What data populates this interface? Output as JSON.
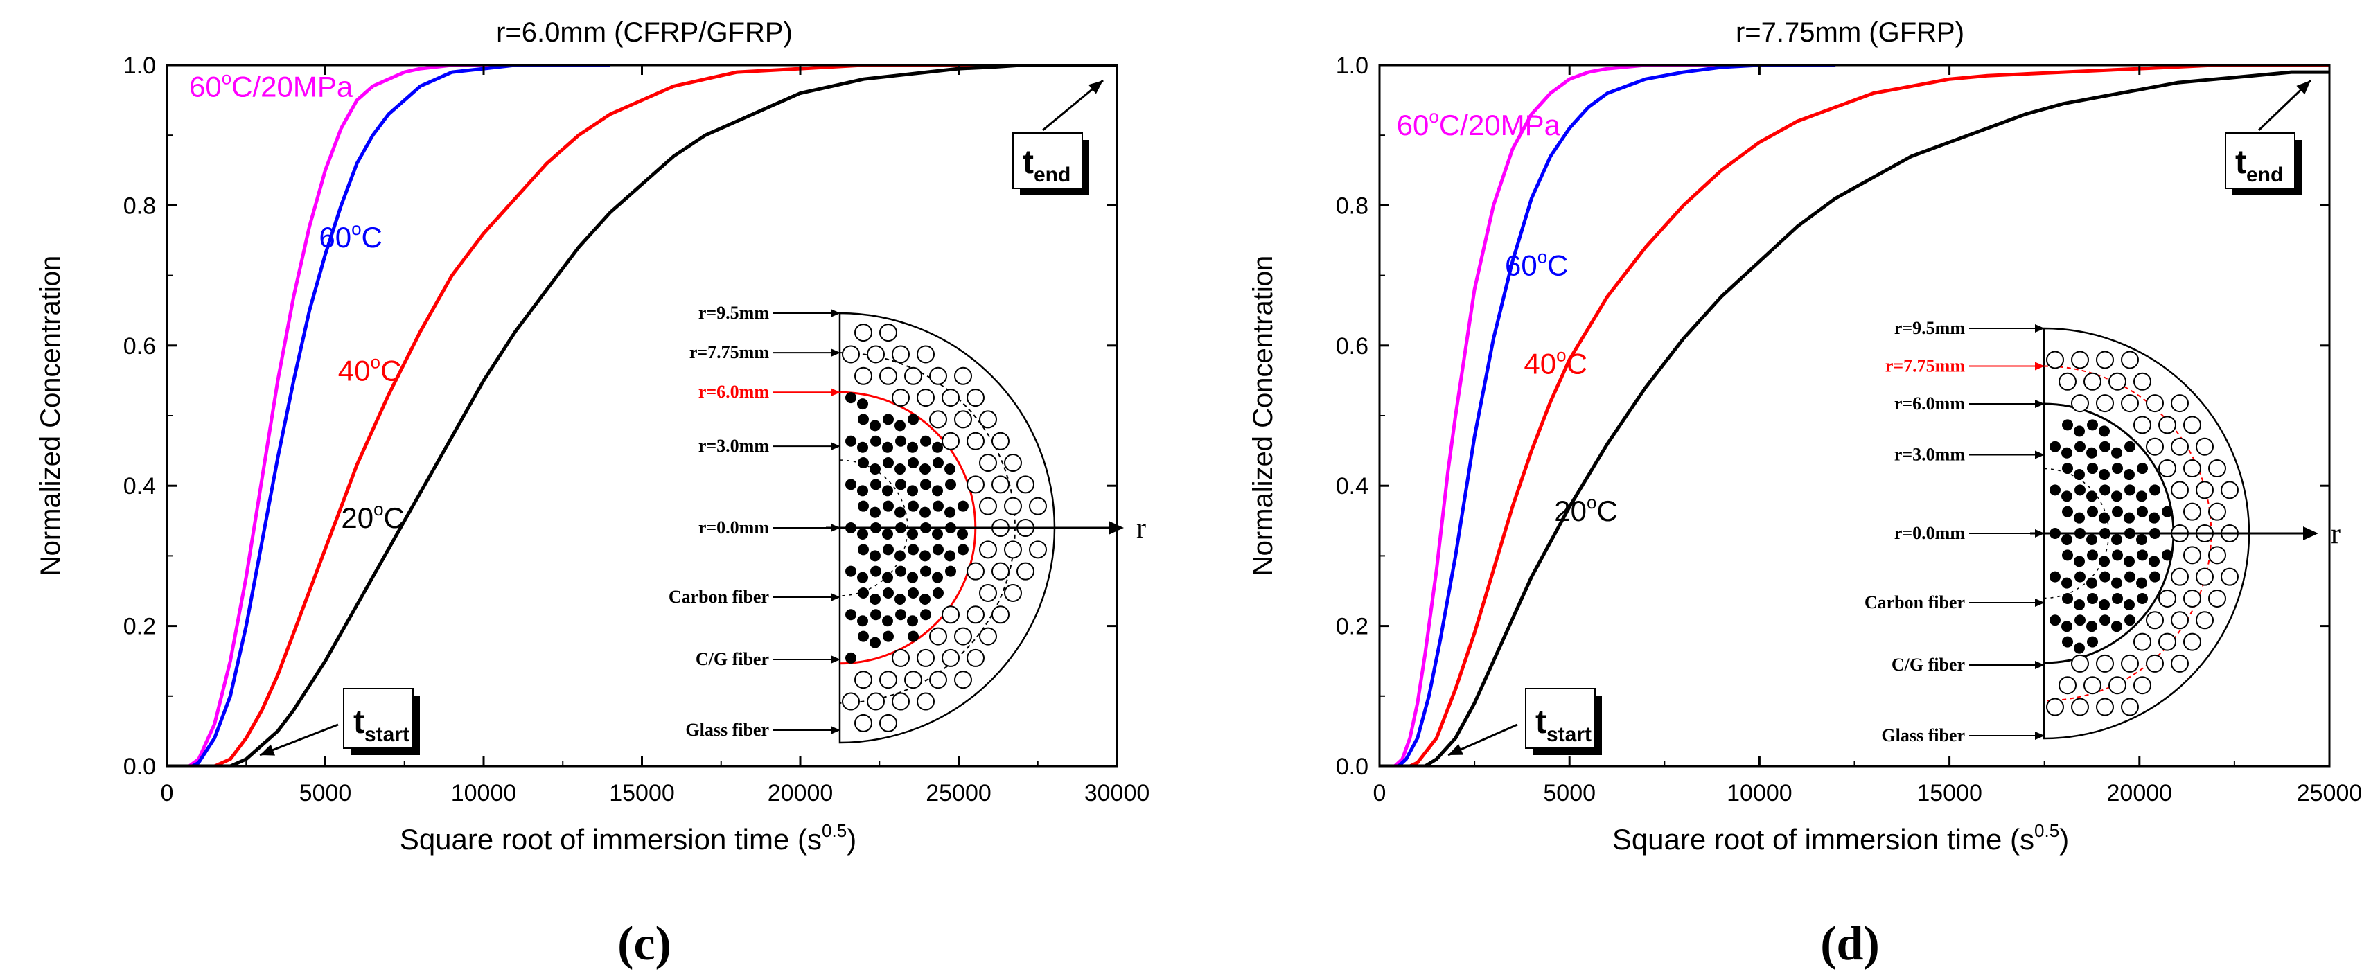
{
  "chart_data": [
    {
      "panel_label": "(c)",
      "type": "line",
      "title": "r=6.0mm (CFRP/GFRP)",
      "xlabel": "Square root of immersion time (s",
      "xlabel_exp": "0.5",
      "xlabel_end": ")",
      "ylabel": "Normalized Concentration",
      "xlim": [
        0,
        30000
      ],
      "ylim": [
        0,
        1.0
      ],
      "xticks": [
        0,
        5000,
        10000,
        15000,
        20000,
        25000,
        30000
      ],
      "yticks": [
        0.0,
        0.2,
        0.4,
        0.6,
        0.8,
        1.0
      ],
      "series": [
        {
          "name": "60°C/20MPa",
          "color": "#ff00ff",
          "x": [
            0,
            700,
            1000,
            1500,
            2000,
            2500,
            3000,
            3500,
            4000,
            4500,
            5000,
            5500,
            6000,
            6500,
            7000,
            7500,
            8000,
            9000,
            10000,
            11000,
            12000,
            14000
          ],
          "y": [
            0,
            0,
            0.01,
            0.06,
            0.15,
            0.27,
            0.41,
            0.55,
            0.67,
            0.77,
            0.85,
            0.91,
            0.95,
            0.97,
            0.98,
            0.99,
            0.995,
            1.0,
            1.0,
            1.0,
            1.0,
            1.0
          ]
        },
        {
          "name": "60°C",
          "color": "#0000ff",
          "x": [
            0,
            800,
            1000,
            1500,
            2000,
            2500,
            3000,
            3500,
            4000,
            4500,
            5000,
            5500,
            6000,
            6500,
            7000,
            7500,
            8000,
            9000,
            10000,
            11000,
            12000,
            13000,
            14000
          ],
          "y": [
            0,
            0,
            0.005,
            0.04,
            0.1,
            0.2,
            0.32,
            0.44,
            0.55,
            0.65,
            0.73,
            0.8,
            0.86,
            0.9,
            0.93,
            0.95,
            0.97,
            0.99,
            0.995,
            1.0,
            1.0,
            1.0,
            1.0
          ]
        },
        {
          "name": "40°C",
          "color": "#ff0000",
          "x": [
            0,
            1500,
            2000,
            2500,
            3000,
            3500,
            4000,
            4500,
            5000,
            5500,
            6000,
            7000,
            8000,
            9000,
            10000,
            11000,
            12000,
            13000,
            14000,
            15000,
            16000,
            17000,
            18000,
            20000,
            22000,
            24000,
            26000,
            28000,
            30000
          ],
          "y": [
            0,
            0,
            0.01,
            0.04,
            0.08,
            0.13,
            0.19,
            0.25,
            0.31,
            0.37,
            0.43,
            0.53,
            0.62,
            0.7,
            0.76,
            0.81,
            0.86,
            0.9,
            0.93,
            0.95,
            0.97,
            0.98,
            0.99,
            0.995,
            1.0,
            1.0,
            1.0,
            1.0,
            1.0
          ]
        },
        {
          "name": "20°C",
          "color": "#000000",
          "x": [
            0,
            2000,
            2500,
            3000,
            3500,
            4000,
            5000,
            6000,
            7000,
            8000,
            9000,
            10000,
            11000,
            12000,
            13000,
            14000,
            15000,
            16000,
            17000,
            18000,
            19000,
            20000,
            21000,
            22000,
            23000,
            24000,
            25000,
            26000,
            27000,
            28000,
            30000
          ],
          "y": [
            0,
            0,
            0.01,
            0.03,
            0.05,
            0.08,
            0.15,
            0.23,
            0.31,
            0.39,
            0.47,
            0.55,
            0.62,
            0.68,
            0.74,
            0.79,
            0.83,
            0.87,
            0.9,
            0.92,
            0.94,
            0.96,
            0.97,
            0.98,
            0.985,
            0.99,
            0.995,
            0.997,
            1.0,
            1.0,
            1.0
          ]
        }
      ],
      "curve_labels": [
        {
          "text": "60",
          "sup": "o",
          "tail": "C/20MPa",
          "color": "#ff00ff",
          "x": 700,
          "y": 0.955
        },
        {
          "text": "60",
          "sup": "o",
          "tail": "C",
          "color": "#0000ff",
          "x": 4800,
          "y": 0.74
        },
        {
          "text": "40",
          "sup": "o",
          "tail": "C",
          "color": "#ff0000",
          "x": 5400,
          "y": 0.55
        },
        {
          "text": "20",
          "sup": "o",
          "tail": "C",
          "color": "#000000",
          "x": 5500,
          "y": 0.34
        }
      ],
      "t_end_label": {
        "t": "t",
        "sub": "end"
      },
      "t_start_label": {
        "t": "t",
        "sub": "start"
      },
      "inset": {
        "labels": [
          "r=9.5mm",
          "r=7.75mm",
          "r=6.0mm",
          "r=3.0mm",
          "r=0.0mm",
          "Carbon fiber",
          "C/G fiber",
          "Glass fiber"
        ],
        "highlight": "r=6.0mm",
        "highlight_color": "#ff0000",
        "axis_label": "r"
      }
    },
    {
      "panel_label": "(d)",
      "type": "line",
      "title": "r=7.75mm (GFRP)",
      "xlabel": "Square root of immersion time (s",
      "xlabel_exp": "0.5",
      "xlabel_end": ")",
      "ylabel": "Normalized Concentration",
      "xlim": [
        0,
        25000
      ],
      "ylim": [
        0,
        1.0
      ],
      "xticks": [
        0,
        5000,
        10000,
        15000,
        20000,
        25000
      ],
      "yticks": [
        0.0,
        0.2,
        0.4,
        0.6,
        0.8,
        1.0
      ],
      "series": [
        {
          "name": "60°C/20MPa",
          "color": "#ff00ff",
          "x": [
            0,
            400,
            600,
            800,
            1000,
            1200,
            1500,
            1800,
            2000,
            2500,
            3000,
            3500,
            4000,
            4500,
            5000,
            5500,
            6000,
            7000,
            8000,
            9000,
            10000,
            11000,
            12000
          ],
          "y": [
            0,
            0,
            0.01,
            0.04,
            0.09,
            0.16,
            0.28,
            0.42,
            0.5,
            0.68,
            0.8,
            0.88,
            0.93,
            0.96,
            0.98,
            0.99,
            0.995,
            1.0,
            1.0,
            1.0,
            1.0,
            1.0,
            1.0
          ]
        },
        {
          "name": "60°C",
          "color": "#0000ff",
          "x": [
            0,
            500,
            700,
            1000,
            1300,
            1600,
            2000,
            2500,
            3000,
            3500,
            4000,
            4500,
            5000,
            5500,
            6000,
            7000,
            8000,
            9000,
            10000,
            11000,
            12000
          ],
          "y": [
            0,
            0,
            0.01,
            0.04,
            0.1,
            0.18,
            0.3,
            0.47,
            0.61,
            0.72,
            0.81,
            0.87,
            0.91,
            0.94,
            0.96,
            0.98,
            0.99,
            0.997,
            1.0,
            1.0,
            1.0
          ]
        },
        {
          "name": "40°C",
          "color": "#ff0000",
          "x": [
            0,
            800,
            1000,
            1500,
            2000,
            2500,
            3000,
            3500,
            4000,
            4500,
            5000,
            6000,
            7000,
            8000,
            9000,
            10000,
            11000,
            12000,
            13000,
            14000,
            15000,
            16000,
            18000,
            20000,
            22000,
            25000
          ],
          "y": [
            0,
            0,
            0.005,
            0.04,
            0.11,
            0.19,
            0.28,
            0.37,
            0.45,
            0.52,
            0.58,
            0.67,
            0.74,
            0.8,
            0.85,
            0.89,
            0.92,
            0.94,
            0.96,
            0.97,
            0.98,
            0.985,
            0.99,
            0.995,
            1.0,
            1.0
          ]
        },
        {
          "name": "20°C",
          "color": "#000000",
          "x": [
            0,
            1200,
            1500,
            2000,
            2500,
            3000,
            3500,
            4000,
            5000,
            6000,
            7000,
            8000,
            9000,
            10000,
            11000,
            12000,
            13000,
            14000,
            15000,
            16000,
            17000,
            18000,
            19000,
            20000,
            21000,
            22000,
            23000,
            24000,
            25000
          ],
          "y": [
            0,
            0,
            0.01,
            0.04,
            0.09,
            0.15,
            0.21,
            0.27,
            0.37,
            0.46,
            0.54,
            0.61,
            0.67,
            0.72,
            0.77,
            0.81,
            0.84,
            0.87,
            0.89,
            0.91,
            0.93,
            0.945,
            0.955,
            0.965,
            0.975,
            0.98,
            0.985,
            0.99,
            0.99
          ]
        }
      ],
      "curve_labels": [
        {
          "text": "60",
          "sup": "o",
          "tail": "C/20MPa",
          "color": "#ff00ff",
          "x": 450,
          "y": 0.9
        },
        {
          "text": "60",
          "sup": "o",
          "tail": "C",
          "color": "#0000ff",
          "x": 3300,
          "y": 0.7
        },
        {
          "text": "40",
          "sup": "o",
          "tail": "C",
          "color": "#ff0000",
          "x": 3800,
          "y": 0.56
        },
        {
          "text": "20",
          "sup": "o",
          "tail": "C",
          "color": "#000000",
          "x": 4600,
          "y": 0.35
        }
      ],
      "t_end_label": {
        "t": "t",
        "sub": "end"
      },
      "t_start_label": {
        "t": "t",
        "sub": "start"
      },
      "inset": {
        "labels": [
          "r=9.5mm",
          "r=7.75mm",
          "r=6.0mm",
          "r=3.0mm",
          "r=0.0mm",
          "Carbon fiber",
          "C/G fiber",
          "Glass fiber"
        ],
        "highlight": "r=7.75mm",
        "highlight_color": "#ff0000",
        "axis_label": "r"
      }
    }
  ]
}
